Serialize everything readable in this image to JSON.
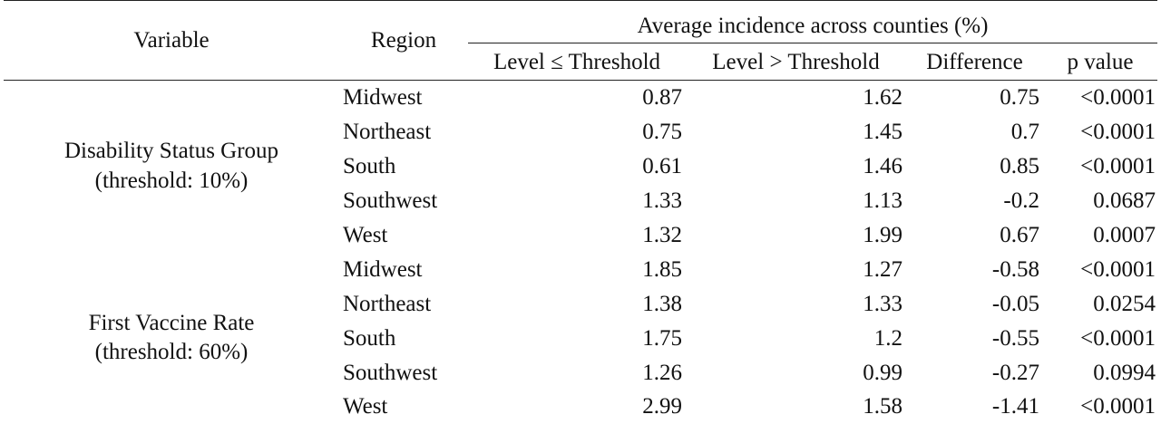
{
  "table": {
    "headers": {
      "variable": "Variable",
      "region": "Region",
      "group": "Average incidence across counties (%)",
      "level_le": "Level ≤ Threshold",
      "level_gt": "Level > Threshold",
      "difference": "Difference",
      "p_value": "p value"
    },
    "groups": [
      {
        "name": "Disability Status Group",
        "threshold": "(threshold: 10%)",
        "rows": [
          {
            "region": "Midwest",
            "le": "0.87",
            "gt": "1.62",
            "diff": "0.75",
            "p": "<0.0001"
          },
          {
            "region": "Northeast",
            "le": "0.75",
            "gt": "1.45",
            "diff": "0.7",
            "p": "<0.0001"
          },
          {
            "region": "South",
            "le": "0.61",
            "gt": "1.46",
            "diff": "0.85",
            "p": "<0.0001"
          },
          {
            "region": "Southwest",
            "le": "1.33",
            "gt": "1.13",
            "diff": "-0.2",
            "p": "0.0687"
          },
          {
            "region": "West",
            "le": "1.32",
            "gt": "1.99",
            "diff": "0.67",
            "p": "0.0007"
          }
        ]
      },
      {
        "name": "First Vaccine Rate",
        "threshold": "(threshold: 60%)",
        "rows": [
          {
            "region": "Midwest",
            "le": "1.85",
            "gt": "1.27",
            "diff": "-0.58",
            "p": "<0.0001"
          },
          {
            "region": "Northeast",
            "le": "1.38",
            "gt": "1.33",
            "diff": "-0.05",
            "p": "0.0254"
          },
          {
            "region": "South",
            "le": "1.75",
            "gt": "1.2",
            "diff": "-0.55",
            "p": "<0.0001"
          },
          {
            "region": "Southwest",
            "le": "1.26",
            "gt": "0.99",
            "diff": "-0.27",
            "p": "0.0994"
          },
          {
            "region": "West",
            "le": "2.99",
            "gt": "1.58",
            "diff": "-1.41",
            "p": "<0.0001"
          }
        ]
      }
    ]
  }
}
